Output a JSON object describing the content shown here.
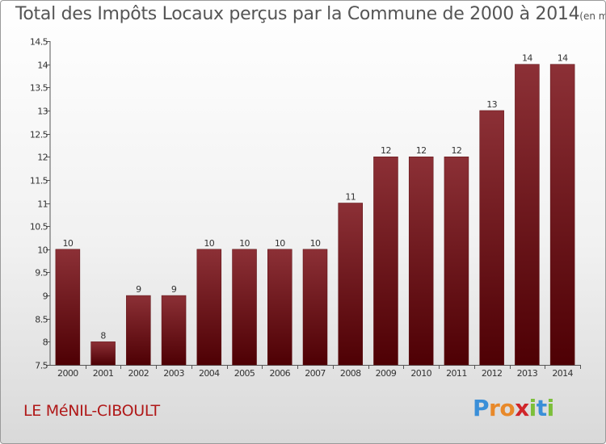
{
  "chart_data": {
    "type": "bar",
    "title": "Total des Impôts Locaux perçus par la Commune de 2000 à 2014",
    "title_unit": "(en milliers d'€)",
    "categories": [
      "2000",
      "2001",
      "2002",
      "2003",
      "2004",
      "2005",
      "2006",
      "2007",
      "2008",
      "2009",
      "2010",
      "2011",
      "2012",
      "2013",
      "2014"
    ],
    "values": [
      10,
      8,
      9,
      9,
      10,
      10,
      10,
      10,
      11,
      12,
      12,
      12,
      13,
      14,
      14
    ],
    "value_labels": [
      "10",
      "8",
      "9",
      "9",
      "10",
      "10",
      "10",
      "10",
      "11",
      "12",
      "12",
      "12",
      "13",
      "14",
      "14"
    ],
    "y_ticks": [
      7.5,
      8,
      8.5,
      9,
      9.5,
      10,
      10.5,
      11,
      11.5,
      12,
      12.5,
      13,
      13.5,
      14,
      14.5
    ],
    "y_tick_labels": [
      "7.5",
      "8",
      "8.5",
      "9",
      "9.5",
      "10",
      "10.5",
      "11",
      "11.5",
      "12",
      "12.5",
      "13",
      "13.5",
      "14",
      "14.5"
    ],
    "ylim": [
      7.5,
      14.5
    ],
    "xlabel": "",
    "ylabel": "",
    "grid": false,
    "bar_color": "#7a1a1e"
  },
  "commune": "LE MéNIL-CIBOULT",
  "logo": {
    "letters": [
      "P",
      "r",
      "o",
      "x",
      "i",
      "t",
      "i"
    ],
    "colors": [
      "#3a8fd8",
      "#e8892a",
      "#e8892a",
      "#d0252a",
      "#7cbf3a",
      "#3a8fd8",
      "#7cbf3a"
    ]
  }
}
